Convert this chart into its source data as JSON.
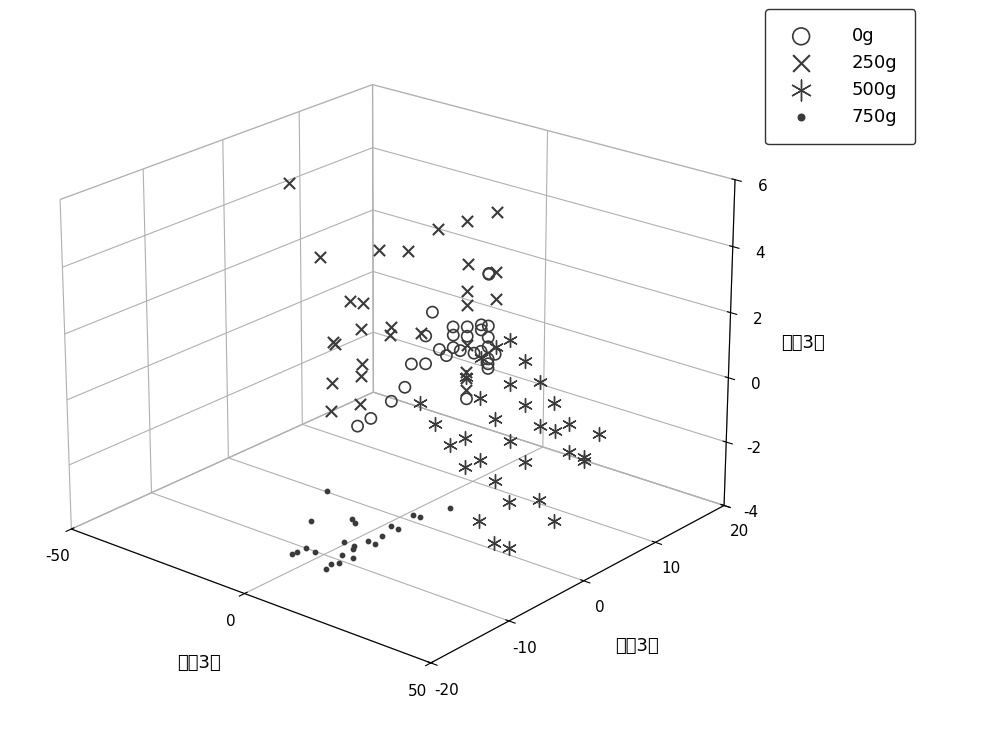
{
  "xlabel": "主成3１",
  "ylabel": "主成3２",
  "zlabel": "主成3３",
  "xlim": [
    -50,
    50
  ],
  "ylim": [
    -20,
    20
  ],
  "zlim": [
    -4,
    6
  ],
  "xticks": [
    -50,
    0,
    50
  ],
  "yticks": [
    -20,
    -10,
    0,
    10,
    20
  ],
  "zticks": [
    -4,
    -2,
    0,
    2,
    4,
    6
  ],
  "legend_labels": [
    "0g",
    "250g",
    "500g",
    "750g"
  ],
  "marker_color": "#3a3a3a",
  "background_color": "#ffffff",
  "elev": 22,
  "azim": -50,
  "group0_x": [
    -42,
    -38,
    -34,
    -30,
    -26,
    -22,
    -18,
    -14,
    -10,
    -6,
    -14,
    -10,
    -6,
    -2,
    2,
    6,
    -18,
    -14,
    -10,
    -6,
    -22,
    -26,
    -10,
    -6,
    -2,
    -14,
    -18,
    -22,
    -26,
    -6
  ],
  "group0_y": [
    14,
    14,
    15,
    15,
    16,
    16,
    16,
    16,
    16,
    15,
    18,
    17,
    15,
    13,
    11,
    9,
    17,
    16,
    15,
    14,
    17,
    16,
    17,
    16,
    13,
    14,
    16,
    15,
    14,
    12
  ],
  "group0_z": [
    -4.2,
    -3.8,
    -3.2,
    -2.6,
    -1.8,
    -1.2,
    -0.6,
    -0.2,
    0.0,
    0.2,
    -0.5,
    -0.8,
    -1.0,
    -0.8,
    2.5,
    2.8,
    -1.2,
    -0.5,
    -0.8,
    -0.5,
    -1.5,
    -0.9,
    -0.5,
    -0.8,
    -0.5,
    0.0,
    -1.0,
    0.1,
    -1.6,
    -1.8
  ],
  "group1_x": [
    -22,
    -18,
    -14,
    -10,
    -6,
    -2,
    2,
    6,
    10,
    14,
    -6,
    -2,
    2,
    6,
    10,
    14,
    -10,
    -6,
    -2,
    2,
    6,
    10,
    14,
    -14,
    -10,
    -6,
    -2,
    2,
    6
  ],
  "group1_y": [
    -4,
    -2,
    0,
    2,
    4,
    6,
    8,
    10,
    8,
    6,
    -2,
    -4,
    -6,
    -8,
    -6,
    -4,
    14,
    12,
    10,
    8,
    6,
    4,
    2,
    -2,
    -4,
    -6,
    -8,
    -6,
    -4
  ],
  "group1_z": [
    5.9,
    3.6,
    2.2,
    3.7,
    3.6,
    4.2,
    4.4,
    4.6,
    3.1,
    2.6,
    2.6,
    1.1,
    1.1,
    0.6,
    2.6,
    2.6,
    2.1,
    1.6,
    1.5,
    0.6,
    0.1,
    -0.1,
    0.6,
    1.1,
    1.5,
    0.6,
    0.1,
    2.5,
    2.5
  ],
  "group2_x": [
    14,
    18,
    22,
    26,
    30,
    34,
    38,
    42,
    18,
    22,
    26,
    30,
    34,
    38,
    42,
    14,
    18,
    22,
    26,
    30,
    34,
    38,
    18,
    22,
    26,
    30,
    34,
    38,
    42,
    22,
    26,
    30,
    34
  ],
  "group2_y": [
    4,
    4,
    4,
    4,
    4,
    4,
    4,
    4,
    0,
    0,
    0,
    0,
    0,
    0,
    0,
    -4,
    -4,
    -4,
    -4,
    -4,
    -4,
    -4,
    6,
    6,
    6,
    6,
    6,
    6,
    6,
    -2,
    -2,
    -2,
    -2
  ],
  "group2_z": [
    1.0,
    1.5,
    0.5,
    0.0,
    -0.5,
    -0.5,
    -1.0,
    -1.0,
    1.0,
    0.5,
    0.0,
    -0.5,
    -1.0,
    -2.0,
    -2.5,
    0.5,
    0.0,
    -0.5,
    -1.0,
    -2.5,
    -3.0,
    -3.0,
    1.5,
    1.0,
    0.5,
    0.0,
    -0.5,
    -1.5,
    -0.5,
    -0.5,
    -1.0,
    -1.5,
    -2.0
  ],
  "group3_x": [
    -10,
    -8,
    -5,
    -3,
    0,
    2,
    5,
    8,
    10,
    12,
    -5,
    -3,
    0,
    2,
    5,
    8,
    10,
    12,
    14,
    18,
    0,
    4,
    8,
    12
  ],
  "group3_y": [
    -5,
    -8,
    -10,
    -12,
    -14,
    -12,
    -10,
    -8,
    -6,
    -4,
    -4,
    -6,
    -8,
    -10,
    -12,
    -10,
    -8,
    -6,
    -4,
    -2,
    -6,
    -8,
    -10,
    -8
  ],
  "group3_z": [
    -3.0,
    -3.5,
    -4.0,
    -3.8,
    -3.5,
    -3.6,
    -3.8,
    -3.5,
    -3.2,
    -3.0,
    -3.8,
    -4.2,
    -4.5,
    -4.2,
    -4.0,
    -3.8,
    -3.5,
    -3.2,
    -3.0,
    -2.8,
    -3.5,
    -3.8,
    -3.5,
    -3.2
  ]
}
